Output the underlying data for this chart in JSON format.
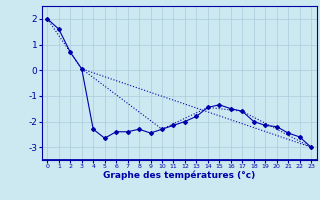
{
  "title": "Graphe des températures (°c)",
  "bg_color": "#cce8f0",
  "grid_color": "#aaccdd",
  "line_color": "#0000aa",
  "axis_bar_color": "#0000cc",
  "xlim": [
    -0.5,
    23.5
  ],
  "ylim": [
    -3.5,
    2.5
  ],
  "yticks": [
    2,
    1,
    0,
    -1,
    -2,
    -3
  ],
  "xticks": [
    0,
    1,
    2,
    3,
    4,
    5,
    6,
    7,
    8,
    9,
    10,
    11,
    12,
    13,
    14,
    15,
    16,
    17,
    18,
    19,
    20,
    21,
    22,
    23
  ],
  "line1_x": [
    0,
    1,
    2,
    3,
    4,
    5,
    6,
    7,
    8,
    9,
    10,
    11,
    12,
    13,
    14,
    15,
    16,
    17,
    18,
    19,
    20,
    21,
    22,
    23
  ],
  "line1_y": [
    2.0,
    1.6,
    0.7,
    0.05,
    -2.3,
    -2.65,
    -2.4,
    -2.4,
    -2.3,
    -2.45,
    -2.3,
    -2.15,
    -2.0,
    -1.8,
    -1.45,
    -1.35,
    -1.5,
    -1.6,
    -2.0,
    -2.15,
    -2.2,
    -2.45,
    -2.6,
    -3.0
  ],
  "line2_x": [
    0,
    2,
    3,
    23
  ],
  "line2_y": [
    2.0,
    0.7,
    0.05,
    -3.0
  ],
  "line3_x": [
    3,
    10,
    14,
    17,
    23
  ],
  "line3_y": [
    0.05,
    -2.3,
    -1.45,
    -1.6,
    -3.0
  ]
}
